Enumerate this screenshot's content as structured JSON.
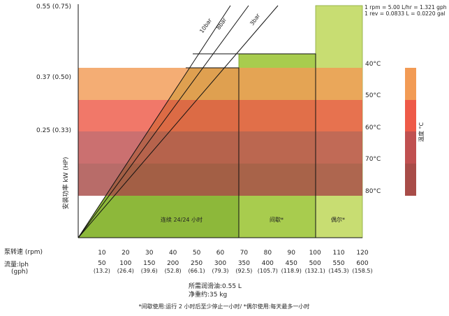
{
  "chart_data": {
    "type": "area",
    "ylabel": "安装功率 kW (HP)",
    "y_ticks": [
      {
        "label": "0.55 (0.75)",
        "value": 0.55
      },
      {
        "label": "0.37 (0.50)",
        "value": 0.37
      },
      {
        "label": "0.25 (0.33)",
        "value": 0.25
      }
    ],
    "x_rows": {
      "rpm_label": "泵转速 (rpm)",
      "flow_label_1": "流量:lph",
      "flow_label_2": "(gph)",
      "ticks": [
        {
          "rpm": "10",
          "lph": "50",
          "gph": "(13.2)"
        },
        {
          "rpm": "20",
          "lph": "100",
          "gph": "(26.4)"
        },
        {
          "rpm": "30",
          "lph": "150",
          "gph": "(39.6)"
        },
        {
          "rpm": "40",
          "lph": "200",
          "gph": "(52.8)"
        },
        {
          "rpm": "50",
          "lph": "250",
          "gph": "(66.1)"
        },
        {
          "rpm": "60",
          "lph": "300",
          "gph": "(79.3)"
        },
        {
          "rpm": "70",
          "lph": "350",
          "gph": "(92.5)"
        },
        {
          "rpm": "80",
          "lph": "400",
          "gph": "(105.7)"
        },
        {
          "rpm": "90",
          "lph": "450",
          "gph": "(118.9)"
        },
        {
          "rpm": "100",
          "lph": "500",
          "gph": "(132.1)"
        },
        {
          "rpm": "110",
          "lph": "550",
          "gph": "(145.3)"
        },
        {
          "rpm": "120",
          "lph": "600",
          "gph": "(158.5)"
        }
      ]
    },
    "pressure_lines": [
      {
        "label": "10bar"
      },
      {
        "label": "8bar"
      },
      {
        "label": "3bar"
      }
    ],
    "duty_zones": [
      {
        "label": "连续 24/24 小时",
        "rpm_end": 68,
        "power_top": 0.37,
        "color": "#8db83a"
      },
      {
        "label": "间歇*",
        "rpm_end": 100,
        "power_top": 0.4,
        "color": "#a8cc4e"
      },
      {
        "label": "偶尔*",
        "rpm_end": 120,
        "power_top": 0.55,
        "color": "#c8dd72"
      }
    ],
    "temperature_bands": [
      {
        "label": "40°C",
        "color": "#f29b55"
      },
      {
        "label": "50°C",
        "color": "#ee5a48"
      },
      {
        "label": "60°C",
        "color": "#c05050"
      },
      {
        "label": "70°C",
        "color": "#a84c48"
      },
      {
        "label": "80°C",
        "color": ""
      }
    ],
    "temp_legend_label": "温度 °C",
    "conversions": [
      "1 rpm = 5.00 L/hr = 1.321 gph",
      "1 rev = 0.0833 L = 0.0220 gal"
    ],
    "notes": [
      "所需润滑油:0.55 L",
      "净重约:35 kg"
    ],
    "footnote": "*间歇使用:运行 2 小时后至少停止一小时/ *偶尔使用:每天最多一小时"
  }
}
